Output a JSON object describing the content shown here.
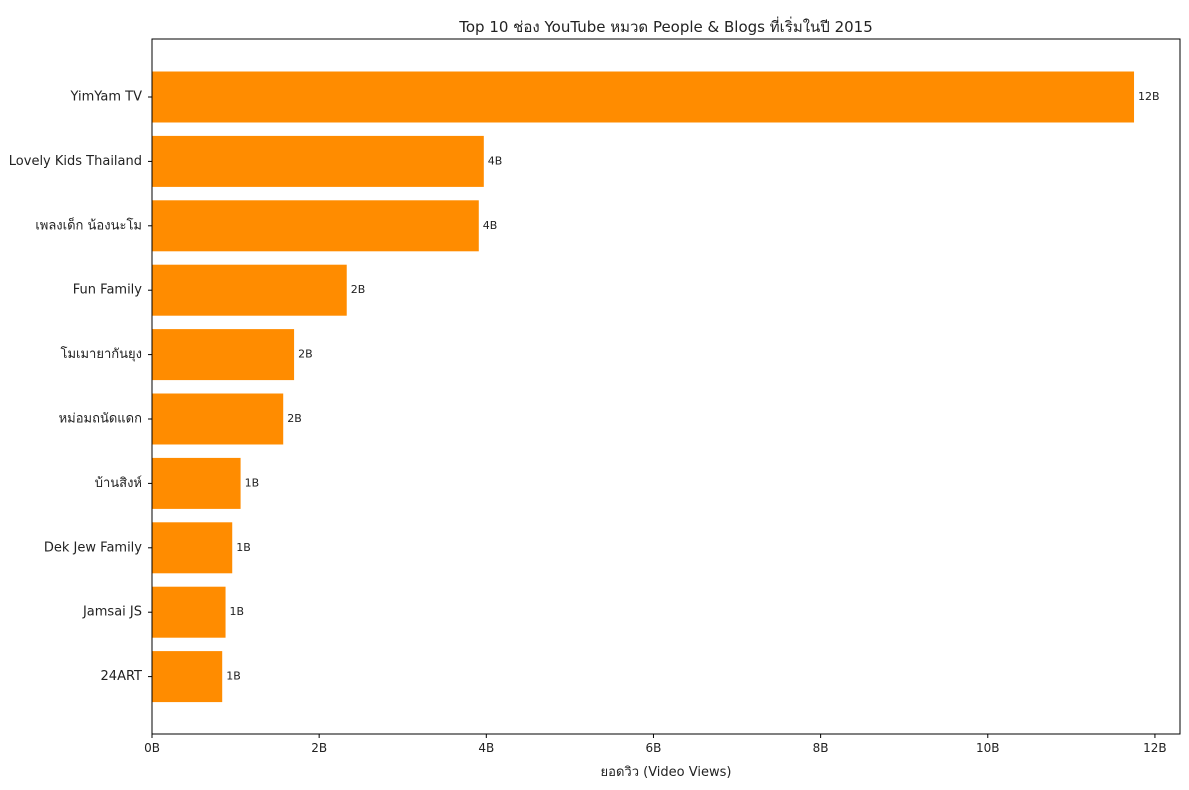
{
  "chart_data": {
    "type": "bar",
    "orientation": "horizontal",
    "title": "Top 10 ช่อง YouTube หมวด People & Blogs ที่เริ่มในปี 2015",
    "xlabel": "ยอดวิว (Video Views)",
    "ylabel": "",
    "unit": "B",
    "xlim": [
      0,
      12.3
    ],
    "xticks": [
      0,
      2,
      4,
      6,
      8,
      10,
      12
    ],
    "xtick_labels": [
      "0B",
      "2B",
      "4B",
      "6B",
      "8B",
      "10B",
      "12B"
    ],
    "grid": false,
    "bar_color": "#ff8c00",
    "categories": [
      "YimYam TV",
      "Lovely Kids Thailand",
      "เพลงเด็ก น้องนะโม",
      "Fun Family",
      "โมเมายากันยุง",
      "หม่อมถนัดแดก",
      "บ้านสิงห์",
      "Dek Jew Family",
      "Jamsai JS",
      "24ART"
    ],
    "values": [
      11.75,
      3.97,
      3.91,
      2.33,
      1.7,
      1.57,
      1.06,
      0.96,
      0.88,
      0.84
    ],
    "value_labels": [
      "12B",
      "4B",
      "4B",
      "2B",
      "2B",
      "2B",
      "1B",
      "1B",
      "1B",
      "1B"
    ]
  }
}
